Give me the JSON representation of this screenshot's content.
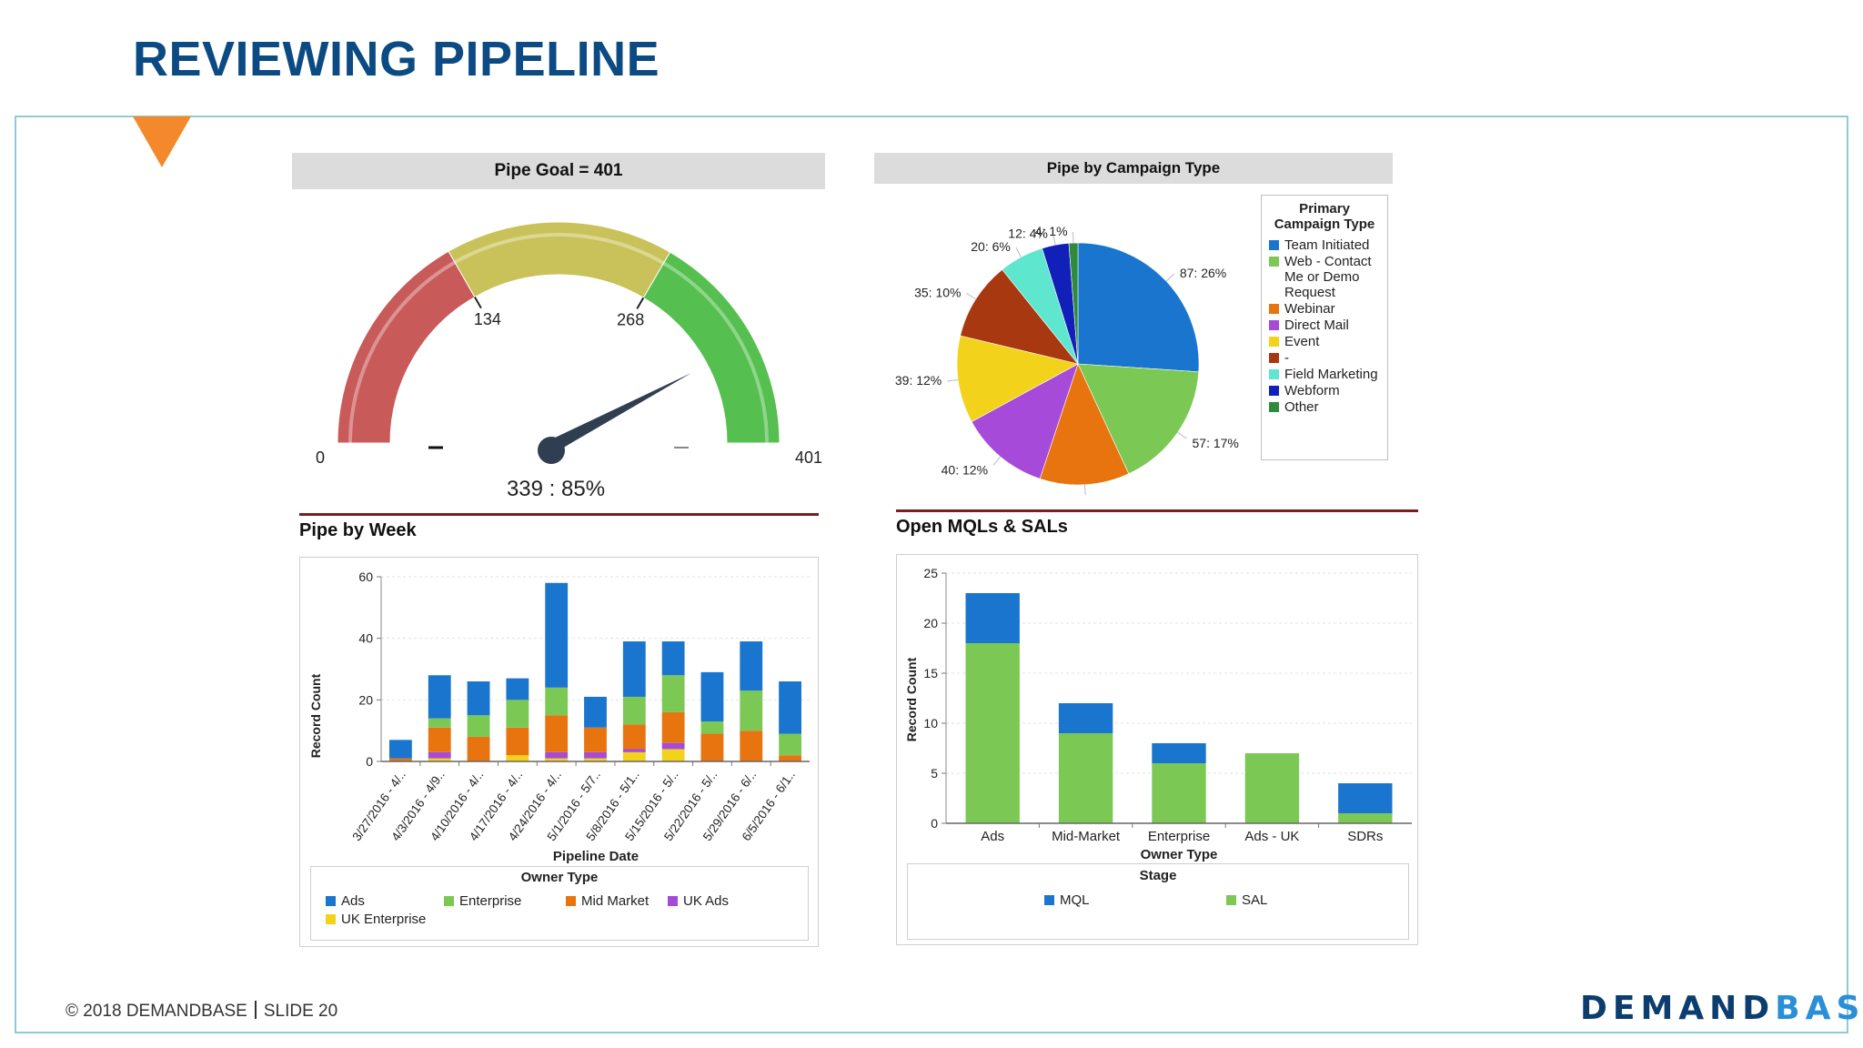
{
  "slide": {
    "title": "REVIEWING PIPELINE",
    "footer_copyright": "© 2018 DEMANDBASE",
    "footer_slide": "SLIDE 20",
    "logo_part1": "DEMAND",
    "logo_part2": "BASE"
  },
  "colors": {
    "title": "#0b4a82",
    "accent_orange": "#f4892b",
    "ads": "#1a75cf",
    "enterprise": "#7cc855",
    "mid_market": "#e8740f",
    "uk_ads": "#a64ad9",
    "uk_enterprise": "#f2d21b",
    "sal": "#7cc855",
    "mql": "#1a75cf"
  },
  "gauge": {
    "header": "Pipe Goal = 401",
    "min_label": "0",
    "max_label": "401",
    "tick1_label": "134",
    "tick2_label": "268",
    "readout": "339 : 85%",
    "chart_data": {
      "type": "gauge",
      "min": 0,
      "max": 401,
      "value": 339,
      "bands": [
        [
          0,
          134
        ],
        [
          134,
          268
        ],
        [
          268,
          401
        ]
      ],
      "band_colors": [
        "#c95a5a",
        "#c9c25a",
        "#55bf4f"
      ]
    }
  },
  "pie": {
    "header": "Pipe by Campaign Type",
    "legend_title": "Primary Campaign Type",
    "chart_data": {
      "type": "pie",
      "slices": [
        {
          "name": "Team Initiated",
          "value": 87,
          "label": "87: 26%",
          "color": "#1a75cf"
        },
        {
          "name": "Web - Contact Me or Demo Request",
          "value": 57,
          "label": "57: 17%",
          "color": "#7cc855"
        },
        {
          "name": "Webinar",
          "value": 40,
          "label": "",
          "color": "#e8740f"
        },
        {
          "name": "Direct Mail",
          "value": 40,
          "label": "40: 12%",
          "color": "#a64ad9"
        },
        {
          "name": "Event",
          "value": 39,
          "label": "39: 12%",
          "color": "#f2d21b"
        },
        {
          "name": "-",
          "value": 35,
          "label": "35: 10%",
          "color": "#a8380f"
        },
        {
          "name": "Field Marketing",
          "value": 20,
          "label": "20: 6%",
          "color": "#5ee6cf"
        },
        {
          "name": "Webform",
          "value": 12,
          "label": "12: 4%",
          "color": "#1020b8"
        },
        {
          "name": "Other",
          "value": 4,
          "label": "4: 1%",
          "color": "#2e8b3e"
        }
      ]
    }
  },
  "pipe_by_week": {
    "title": "Pipe by Week",
    "legend_title": "Owner Type",
    "chart_data": {
      "type": "bar",
      "stacked": true,
      "title": "Pipe by Week",
      "xlabel": "Pipeline Date",
      "ylabel": "Record Count",
      "ylim": [
        0,
        60
      ],
      "yticks": [
        0,
        20,
        40,
        60
      ],
      "categories": [
        "3/27/2016 - 4/..",
        "4/3/2016 - 4/9..",
        "4/10/2016 - 4/..",
        "4/17/2016 - 4/..",
        "4/24/2016 - 4/..",
        "5/1/2016 - 5/7..",
        "5/8/2016 - 5/1..",
        "5/15/2016 - 5/..",
        "5/22/2016 - 5/..",
        "5/29/2016 - 6/..",
        "6/5/2016 - 6/1.."
      ],
      "series": [
        {
          "name": "UK Enterprise",
          "color": "#f2d21b",
          "values": [
            0,
            1,
            0,
            2,
            1,
            1,
            3,
            4,
            0,
            0,
            0
          ]
        },
        {
          "name": "UK Ads",
          "color": "#a64ad9",
          "values": [
            0,
            2,
            0,
            0,
            2,
            2,
            1,
            2,
            0,
            0,
            0
          ]
        },
        {
          "name": "Mid Market",
          "color": "#e8740f",
          "values": [
            1,
            8,
            8,
            9,
            12,
            8,
            8,
            10,
            9,
            10,
            2
          ]
        },
        {
          "name": "Enterprise",
          "color": "#7cc855",
          "values": [
            0,
            3,
            7,
            9,
            9,
            0,
            9,
            12,
            4,
            13,
            7
          ]
        },
        {
          "name": "Ads",
          "color": "#1a75cf",
          "values": [
            6,
            14,
            11,
            7,
            34,
            10,
            18,
            11,
            16,
            16,
            17
          ]
        }
      ],
      "legend_order": [
        "Ads",
        "Enterprise",
        "Mid Market",
        "UK Ads",
        "UK Enterprise"
      ]
    }
  },
  "mqls_sals": {
    "title": "Open MQLs & SALs",
    "legend_title": "Stage",
    "chart_data": {
      "type": "bar",
      "stacked": true,
      "title": "Open MQLs & SALs",
      "xlabel": "Owner Type",
      "ylabel": "Record Count",
      "ylim": [
        0,
        25
      ],
      "yticks": [
        0,
        5,
        10,
        15,
        20,
        25
      ],
      "categories": [
        "Ads",
        "Mid-Market",
        "Enterprise",
        "Ads - UK",
        "SDRs"
      ],
      "series": [
        {
          "name": "SAL",
          "color": "#7cc855",
          "values": [
            18,
            9,
            6,
            7,
            1
          ]
        },
        {
          "name": "MQL",
          "color": "#1a75cf",
          "values": [
            5,
            3,
            2,
            0,
            3
          ]
        }
      ],
      "legend_order": [
        "MQL",
        "SAL"
      ]
    }
  }
}
